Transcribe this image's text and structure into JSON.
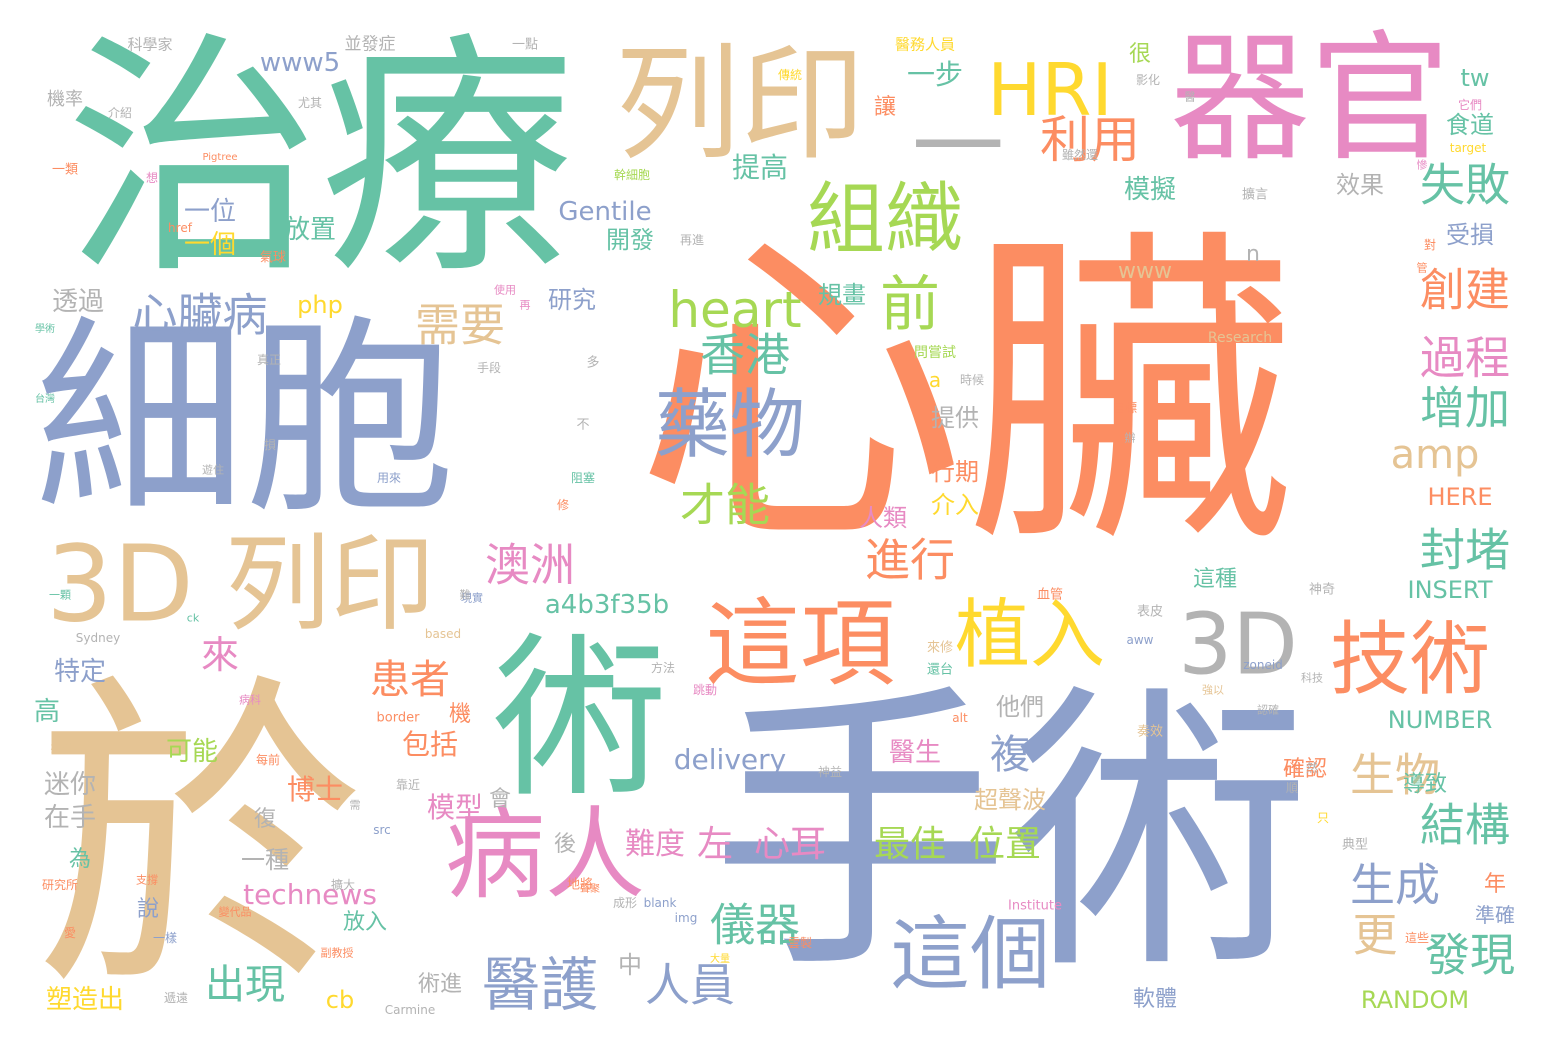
{
  "palette": {
    "green": "#66c2a5",
    "orange": "#fc8d62",
    "blue": "#8da0cb",
    "pink": "#e78ac3",
    "lime": "#a6d854",
    "yellow": "#ffd92f",
    "tan": "#e5c494",
    "gray": "#b3b3b3"
  },
  "words": [
    {
      "text": "心臟",
      "color": "orange"
    },
    {
      "text": "手術",
      "color": "blue"
    },
    {
      "text": "於",
      "color": "tan"
    },
    {
      "text": "治療",
      "color": "green"
    },
    {
      "text": "細胞",
      "color": "blue"
    },
    {
      "text": "術",
      "color": "green"
    },
    {
      "text": "器官",
      "color": "pink"
    },
    {
      "text": "列印",
      "color": "tan"
    },
    {
      "text": "3D",
      "color": "tan"
    },
    {
      "text": "列印",
      "color": "tan"
    },
    {
      "text": "病人",
      "color": "pink"
    },
    {
      "text": "這項",
      "color": "orange"
    },
    {
      "text": "3D",
      "color": "gray"
    },
    {
      "text": "技術",
      "color": "orange"
    },
    {
      "text": "HRI",
      "color": "yellow"
    },
    {
      "text": "一",
      "color": "gray"
    },
    {
      "text": "組織",
      "color": "lime"
    },
    {
      "text": "植入",
      "color": "yellow"
    },
    {
      "text": "藥物",
      "color": "blue"
    },
    {
      "text": "這個",
      "color": "blue"
    },
    {
      "text": "醫護",
      "color": "blue"
    },
    {
      "text": "前",
      "color": "lime"
    },
    {
      "text": "heart",
      "color": "lime"
    },
    {
      "text": "利用",
      "color": "orange"
    },
    {
      "text": "失敗",
      "color": "green"
    },
    {
      "text": "心臟病",
      "color": "blue"
    },
    {
      "text": "需要",
      "color": "tan"
    },
    {
      "text": "香港",
      "color": "green"
    },
    {
      "text": "創建",
      "color": "orange"
    },
    {
      "text": "過程",
      "color": "pink"
    },
    {
      "text": "增加",
      "color": "green"
    },
    {
      "text": "amp",
      "color": "tan"
    },
    {
      "text": "才能",
      "color": "lime"
    },
    {
      "text": "澳洲",
      "color": "pink"
    },
    {
      "text": "進行",
      "color": "orange"
    },
    {
      "text": "封堵",
      "color": "green"
    },
    {
      "text": "生物",
      "color": "tan"
    },
    {
      "text": "結構",
      "color": "green"
    },
    {
      "text": "生成",
      "color": "blue"
    },
    {
      "text": "更",
      "color": "tan"
    },
    {
      "text": "發現",
      "color": "green"
    },
    {
      "text": "儀器",
      "color": "green"
    },
    {
      "text": "人員",
      "color": "blue"
    },
    {
      "text": "出現",
      "color": "green"
    },
    {
      "text": "患者",
      "color": "orange"
    },
    {
      "text": "來",
      "color": "pink"
    },
    {
      "text": "複",
      "color": "blue"
    },
    {
      "text": "左",
      "color": "pink"
    },
    {
      "text": "心耳",
      "color": "pink"
    },
    {
      "text": "最佳",
      "color": "lime"
    },
    {
      "text": "位置",
      "color": "lime"
    },
    {
      "text": "a4b3f35b",
      "color": "green"
    },
    {
      "text": "博士",
      "color": "orange"
    },
    {
      "text": "包括",
      "color": "orange"
    },
    {
      "text": "delivery",
      "color": "blue"
    },
    {
      "text": "模型",
      "color": "pink"
    },
    {
      "text": "technews",
      "color": "pink"
    },
    {
      "text": "難度",
      "color": "pink"
    },
    {
      "text": "NUMBER",
      "color": "green"
    },
    {
      "text": "RANDOM",
      "color": "lime"
    },
    {
      "text": "INSERT",
      "color": "green"
    },
    {
      "text": "HERE",
      "color": "orange"
    },
    {
      "text": "Gentile",
      "color": "blue"
    },
    {
      "text": "www5",
      "color": "blue"
    },
    {
      "text": "php",
      "color": "yellow"
    },
    {
      "text": "www",
      "color": "tan"
    },
    {
      "text": "tw",
      "color": "green"
    },
    {
      "text": "一步",
      "color": "green"
    },
    {
      "text": "提高",
      "color": "green"
    },
    {
      "text": "一位",
      "color": "blue"
    },
    {
      "text": "一個",
      "color": "yellow"
    },
    {
      "text": "放置",
      "color": "green"
    },
    {
      "text": "研究",
      "color": "blue"
    },
    {
      "text": "規畫",
      "color": "green"
    },
    {
      "text": "模擬",
      "color": "green"
    },
    {
      "text": "效果",
      "color": "gray"
    },
    {
      "text": "食道",
      "color": "green"
    },
    {
      "text": "受損",
      "color": "blue"
    },
    {
      "text": "開發",
      "color": "green"
    },
    {
      "text": "透過",
      "color": "gray"
    },
    {
      "text": "特定",
      "color": "blue"
    },
    {
      "text": "可能",
      "color": "lime"
    },
    {
      "text": "迷你",
      "color": "gray"
    },
    {
      "text": "在手",
      "color": "gray"
    },
    {
      "text": "高",
      "color": "green"
    },
    {
      "text": "提供",
      "color": "gray"
    },
    {
      "text": "行期",
      "color": "orange"
    },
    {
      "text": "介入",
      "color": "yellow"
    },
    {
      "text": "人類",
      "color": "pink"
    },
    {
      "text": "他們",
      "color": "gray"
    },
    {
      "text": "醫生",
      "color": "pink"
    },
    {
      "text": "超聲波",
      "color": "tan"
    },
    {
      "text": "確認",
      "color": "orange"
    },
    {
      "text": "導致",
      "color": "green"
    },
    {
      "text": "這種",
      "color": "green"
    },
    {
      "text": "一種",
      "color": "gray"
    },
    {
      "text": "說",
      "color": "blue"
    },
    {
      "text": "放入",
      "color": "green"
    },
    {
      "text": "塑造出",
      "color": "yellow"
    },
    {
      "text": "術進",
      "color": "gray"
    },
    {
      "text": "cb",
      "color": "yellow"
    },
    {
      "text": "軟體",
      "color": "blue"
    },
    {
      "text": "中",
      "color": "gray"
    },
    {
      "text": "後",
      "color": "gray"
    },
    {
      "text": "會",
      "color": "gray"
    },
    {
      "text": "年",
      "color": "orange"
    },
    {
      "text": "準確",
      "color": "blue"
    },
    {
      "text": "機",
      "color": "orange"
    },
    {
      "text": "為",
      "color": "green"
    },
    {
      "text": "復",
      "color": "gray"
    },
    {
      "text": "很",
      "color": "lime"
    },
    {
      "text": "讓",
      "color": "orange"
    },
    {
      "text": "n",
      "color": "gray"
    },
    {
      "text": "a",
      "color": "yellow"
    },
    {
      "text": "科學家",
      "color": "gray"
    },
    {
      "text": "並發症",
      "color": "gray"
    },
    {
      "text": "一點",
      "color": "gray"
    },
    {
      "text": "機率",
      "color": "gray"
    },
    {
      "text": "介紹",
      "color": "gray"
    },
    {
      "text": "尤其",
      "color": "gray"
    },
    {
      "text": "醫務人員",
      "color": "yellow"
    },
    {
      "text": "傳統",
      "color": "yellow"
    },
    {
      "text": "影化",
      "color": "gray"
    },
    {
      "text": "它們",
      "color": "pink"
    },
    {
      "text": "target",
      "color": "yellow"
    },
    {
      "text": "雖然還",
      "color": "gray"
    },
    {
      "text": "幹細胞",
      "color": "lime"
    },
    {
      "text": "擴言",
      "color": "gray"
    },
    {
      "text": "對",
      "color": "orange"
    },
    {
      "text": "Research",
      "color": "tan"
    },
    {
      "text": "一類",
      "color": "orange"
    },
    {
      "text": "Pigtree",
      "color": "orange"
    },
    {
      "text": "想",
      "color": "pink"
    },
    {
      "text": "href",
      "color": "orange"
    },
    {
      "text": "氣球",
      "color": "orange"
    },
    {
      "text": "再進",
      "color": "gray"
    },
    {
      "text": "問嘗試",
      "color": "lime"
    },
    {
      "text": "時候",
      "color": "gray"
    },
    {
      "text": "目標",
      "color": "orange"
    },
    {
      "text": "手段",
      "color": "gray"
    },
    {
      "text": "多",
      "color": "gray"
    },
    {
      "text": "不",
      "color": "gray"
    },
    {
      "text": "阻塞",
      "color": "green"
    },
    {
      "text": "用來",
      "color": "blue"
    },
    {
      "text": "修",
      "color": "orange"
    },
    {
      "text": "真正",
      "color": "gray"
    },
    {
      "text": "學術",
      "color": "green"
    },
    {
      "text": "台灣",
      "color": "green"
    },
    {
      "text": "損",
      "color": "gray"
    },
    {
      "text": "Sydney",
      "color": "gray"
    },
    {
      "text": "ck",
      "color": "green"
    },
    {
      "text": "based",
      "color": "tan"
    },
    {
      "text": "Carmine",
      "color": "gray"
    },
    {
      "text": "zoneid",
      "color": "blue"
    },
    {
      "text": "aww",
      "color": "blue"
    },
    {
      "text": "alt",
      "color": "orange"
    },
    {
      "text": "src",
      "color": "blue"
    },
    {
      "text": "blank",
      "color": "blue"
    },
    {
      "text": "img",
      "color": "blue"
    },
    {
      "text": "Institute",
      "color": "pink"
    },
    {
      "text": "border",
      "color": "orange"
    },
    {
      "text": "研究所",
      "color": "orange"
    },
    {
      "text": "病患者",
      "color": "tan"
    },
    {
      "text": "神奇",
      "color": "gray"
    },
    {
      "text": "血管",
      "color": "orange"
    },
    {
      "text": "表皮",
      "color": "gray"
    },
    {
      "text": "來修",
      "color": "tan"
    },
    {
      "text": "還台",
      "color": "green"
    },
    {
      "text": "奏效",
      "color": "tan"
    },
    {
      "text": "典型",
      "color": "gray"
    },
    {
      "text": "成形",
      "color": "gray"
    },
    {
      "text": "一樣",
      "color": "blue"
    },
    {
      "text": "神益",
      "color": "gray"
    },
    {
      "text": "地將",
      "color": "orange"
    },
    {
      "text": "方法",
      "color": "gray"
    },
    {
      "text": "只",
      "color": "yellow"
    },
    {
      "text": "愛",
      "color": "orange"
    },
    {
      "text": "跳動",
      "color": "pink"
    },
    {
      "text": "每前",
      "color": "orange"
    },
    {
      "text": "靠近",
      "color": "gray"
    },
    {
      "text": "擴大",
      "color": "gray"
    },
    {
      "text": "心",
      "color": "orange"
    },
    {
      "text": "然",
      "color": "gray"
    },
    {
      "text": "順",
      "color": "gray"
    },
    {
      "text": "這些",
      "color": "orange"
    },
    {
      "text": "雲製",
      "color": "orange"
    },
    {
      "text": "大量",
      "color": "yellow"
    },
    {
      "text": "遞遠",
      "color": "gray"
    },
    {
      "text": "變代品",
      "color": "orange"
    },
    {
      "text": "副教授",
      "color": "orange"
    },
    {
      "text": "現實",
      "color": "blue"
    },
    {
      "text": "科技",
      "color": "gray"
    },
    {
      "text": "強以",
      "color": "tan"
    },
    {
      "text": "病科",
      "color": "pink"
    },
    {
      "text": "認確",
      "color": "gray"
    },
    {
      "text": "一顆",
      "color": "green"
    },
    {
      "text": "需",
      "color": "gray"
    },
    {
      "text": "支撐",
      "color": "orange"
    },
    {
      "text": "遊住",
      "color": "gray"
    },
    {
      "text": "使用",
      "color": "pink"
    },
    {
      "text": "再",
      "color": "pink"
    },
    {
      "text": "聲聚",
      "color": "orange"
    },
    {
      "text": "慘",
      "color": "pink"
    },
    {
      "text": "難",
      "color": "gray"
    },
    {
      "text": "醫",
      "color": "gray"
    },
    {
      "text": "辦",
      "color": "gray"
    },
    {
      "text": "管",
      "color": "orange"
    }
  ]
}
